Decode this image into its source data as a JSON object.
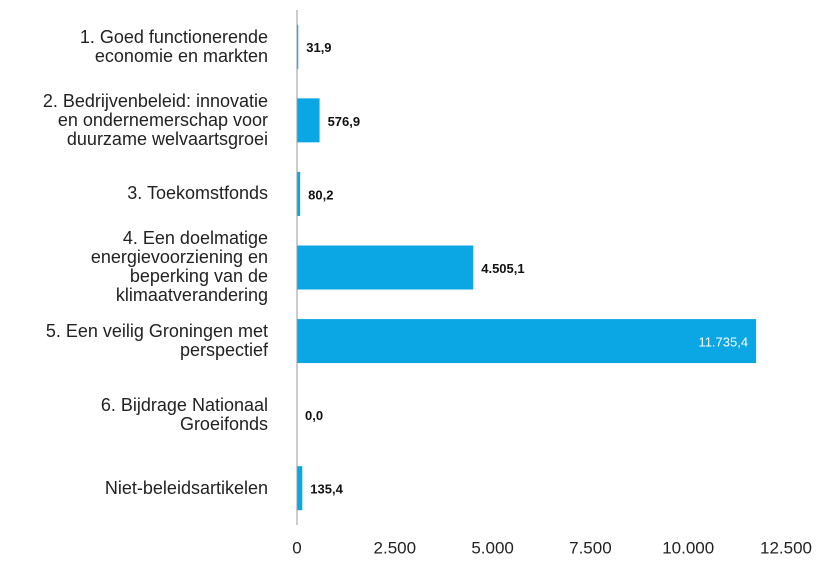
{
  "chart_data": {
    "type": "barh",
    "categories": [
      "1. Goed functionerende economie en markten",
      "2. Bedrijvenbeleid: innovatie en ondernemerschap voor duurzame welvaartsgroei",
      "3. Toekomstfonds",
      "4. Een doelmatige energievoorziening en beperking van de klimaatverandering",
      "5. Een veilig Groningen met perspectief",
      "6. Bijdrage Nationaal Groeifonds",
      "Niet-beleidsartikelen"
    ],
    "values": [
      31.9,
      576.9,
      80.2,
      4505.1,
      11735.4,
      0.0,
      135.4
    ],
    "value_labels": [
      "31,9",
      "576,9",
      "80,2",
      "4.505,1",
      "11.735,4",
      "0,0",
      "135,4"
    ],
    "color": "#0aa7e4",
    "xlim": [
      0,
      12500
    ],
    "xticks": [
      0,
      {
        "value": 2500,
        "label": "2.500"
      },
      {
        "value": 5000,
        "label": "5.000"
      },
      {
        "value": 7500,
        "label": "7.500"
      },
      {
        "value": 10000,
        "label": "10.000"
      },
      {
        "value": 12500,
        "label": "12.500"
      }
    ]
  }
}
